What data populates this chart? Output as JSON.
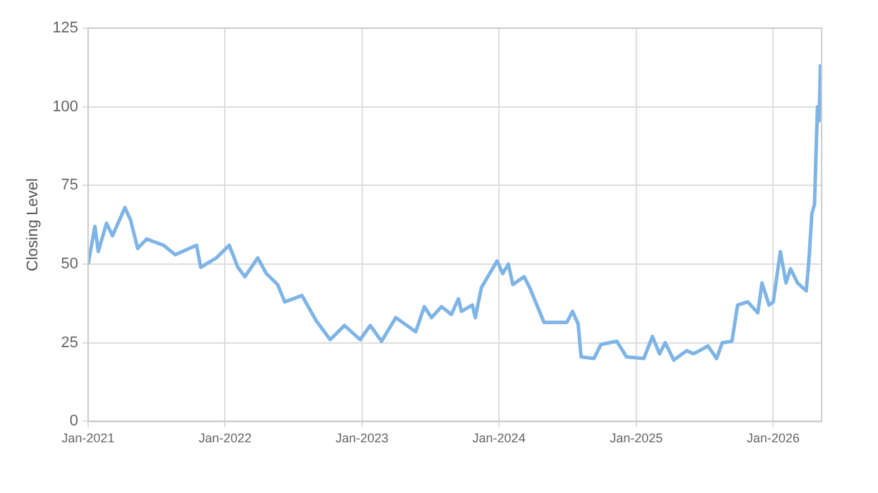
{
  "chart_data": {
    "type": "line",
    "ylabel": "Closing Level",
    "xlim": [
      "2021-01-01",
      "2026-05-10"
    ],
    "xticks": [
      {
        "value": "2021-01-01",
        "label": "Jan-2021"
      },
      {
        "value": "2022-01-01",
        "label": "Jan-2022"
      },
      {
        "value": "2023-01-01",
        "label": "Jan-2023"
      },
      {
        "value": "2024-01-01",
        "label": "Jan-2024"
      },
      {
        "value": "2025-01-01",
        "label": "Jan-2025"
      },
      {
        "value": "2026-01-01",
        "label": "Jan-2026"
      }
    ],
    "ylim": [
      0,
      125
    ],
    "yticks": [
      0,
      25,
      50,
      75,
      100,
      125
    ],
    "grid": true,
    "legend": false,
    "marker": "none",
    "line_style": "solid",
    "x": [
      "2021-01-01",
      "2021-01-19",
      "2021-01-28",
      "2021-02-19",
      "2021-03-07",
      "2021-04-09",
      "2021-04-24",
      "2021-05-13",
      "2021-06-06",
      "2021-07-21",
      "2021-08-21",
      "2021-10-17",
      "2021-10-28",
      "2021-12-09",
      "2022-01-12",
      "2022-02-04",
      "2022-02-23",
      "2022-03-29",
      "2022-04-21",
      "2022-05-21",
      "2022-06-09",
      "2022-07-25",
      "2022-09-01",
      "2022-10-08",
      "2022-11-15",
      "2022-12-27",
      "2023-01-23",
      "2023-02-22",
      "2023-04-01",
      "2023-05-24",
      "2023-06-16",
      "2023-07-05",
      "2023-08-01",
      "2023-08-27",
      "2023-09-15",
      "2023-09-23",
      "2023-10-22",
      "2023-10-30",
      "2023-11-15",
      "2023-12-27",
      "2024-01-11",
      "2024-01-26",
      "2024-02-07",
      "2024-03-08",
      "2024-03-23",
      "2024-04-30",
      "2024-06-30",
      "2024-07-15",
      "2024-07-30",
      "2024-08-07",
      "2024-09-10",
      "2024-09-29",
      "2024-11-10",
      "2024-12-06",
      "2025-01-21",
      "2025-02-13",
      "2025-03-04",
      "2025-03-19",
      "2025-04-11",
      "2025-05-15",
      "2025-06-03",
      "2025-07-11",
      "2025-08-03",
      "2025-08-18",
      "2025-09-13",
      "2025-09-28",
      "2025-10-25",
      "2025-11-21",
      "2025-12-02",
      "2025-12-21",
      "2026-01-01",
      "2026-01-20",
      "2026-02-04",
      "2026-02-16",
      "2026-03-07",
      "2026-03-30",
      "2026-04-06",
      "2026-04-14",
      "2026-04-21",
      "2026-04-25",
      "2026-04-29",
      "2026-05-03",
      "2026-05-07"
    ],
    "series": [
      {
        "color": "#7eb4e6",
        "values": [
          50,
          62,
          54,
          63,
          59,
          68,
          64,
          55,
          58,
          56,
          53,
          56,
          49,
          52,
          56,
          49,
          46,
          52,
          47,
          43.5,
          38,
          40,
          32,
          26,
          30.5,
          26,
          30.5,
          25.5,
          33,
          28.5,
          36.5,
          33,
          36.5,
          34,
          39,
          35,
          37,
          33,
          42.5,
          51,
          47,
          50,
          43.5,
          46,
          42.5,
          31.5,
          31.5,
          35,
          31,
          20.5,
          20,
          24.5,
          25.5,
          20.5,
          20,
          27,
          21.5,
          25,
          19.5,
          22.5,
          21.5,
          24,
          20,
          25,
          25.5,
          37,
          38,
          34.5,
          44,
          37,
          38,
          54,
          44,
          48.5,
          44,
          41.5,
          51,
          66,
          69,
          85,
          100,
          95.5,
          113.5
        ]
      }
    ]
  }
}
